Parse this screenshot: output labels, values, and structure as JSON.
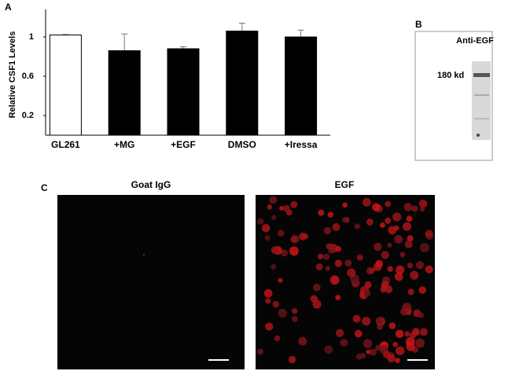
{
  "panels": [
    "A",
    "B",
    "C"
  ],
  "chart_data": {
    "type": "bar",
    "y_label": "Relative CSF1 Levels",
    "categories": [
      "GL261",
      "+MG",
      "+EGF",
      "DMSO",
      "+Iressa"
    ],
    "values": [
      1.02,
      0.86,
      0.88,
      1.06,
      1.0
    ],
    "errors": [
      0.005,
      0.17,
      0.02,
      0.08,
      0.07
    ],
    "colors": [
      "#ffffff",
      "#000000",
      "#000000",
      "#000000",
      "#000000"
    ],
    "ylim": [
      0,
      1.28
    ],
    "yticks": [
      0.2,
      0.6,
      1
    ]
  },
  "blot": {
    "title": "Anti-EGF",
    "marker": "180 kd"
  },
  "micrographs": [
    {
      "title": "Goat IgG"
    },
    {
      "title": "EGF"
    }
  ]
}
